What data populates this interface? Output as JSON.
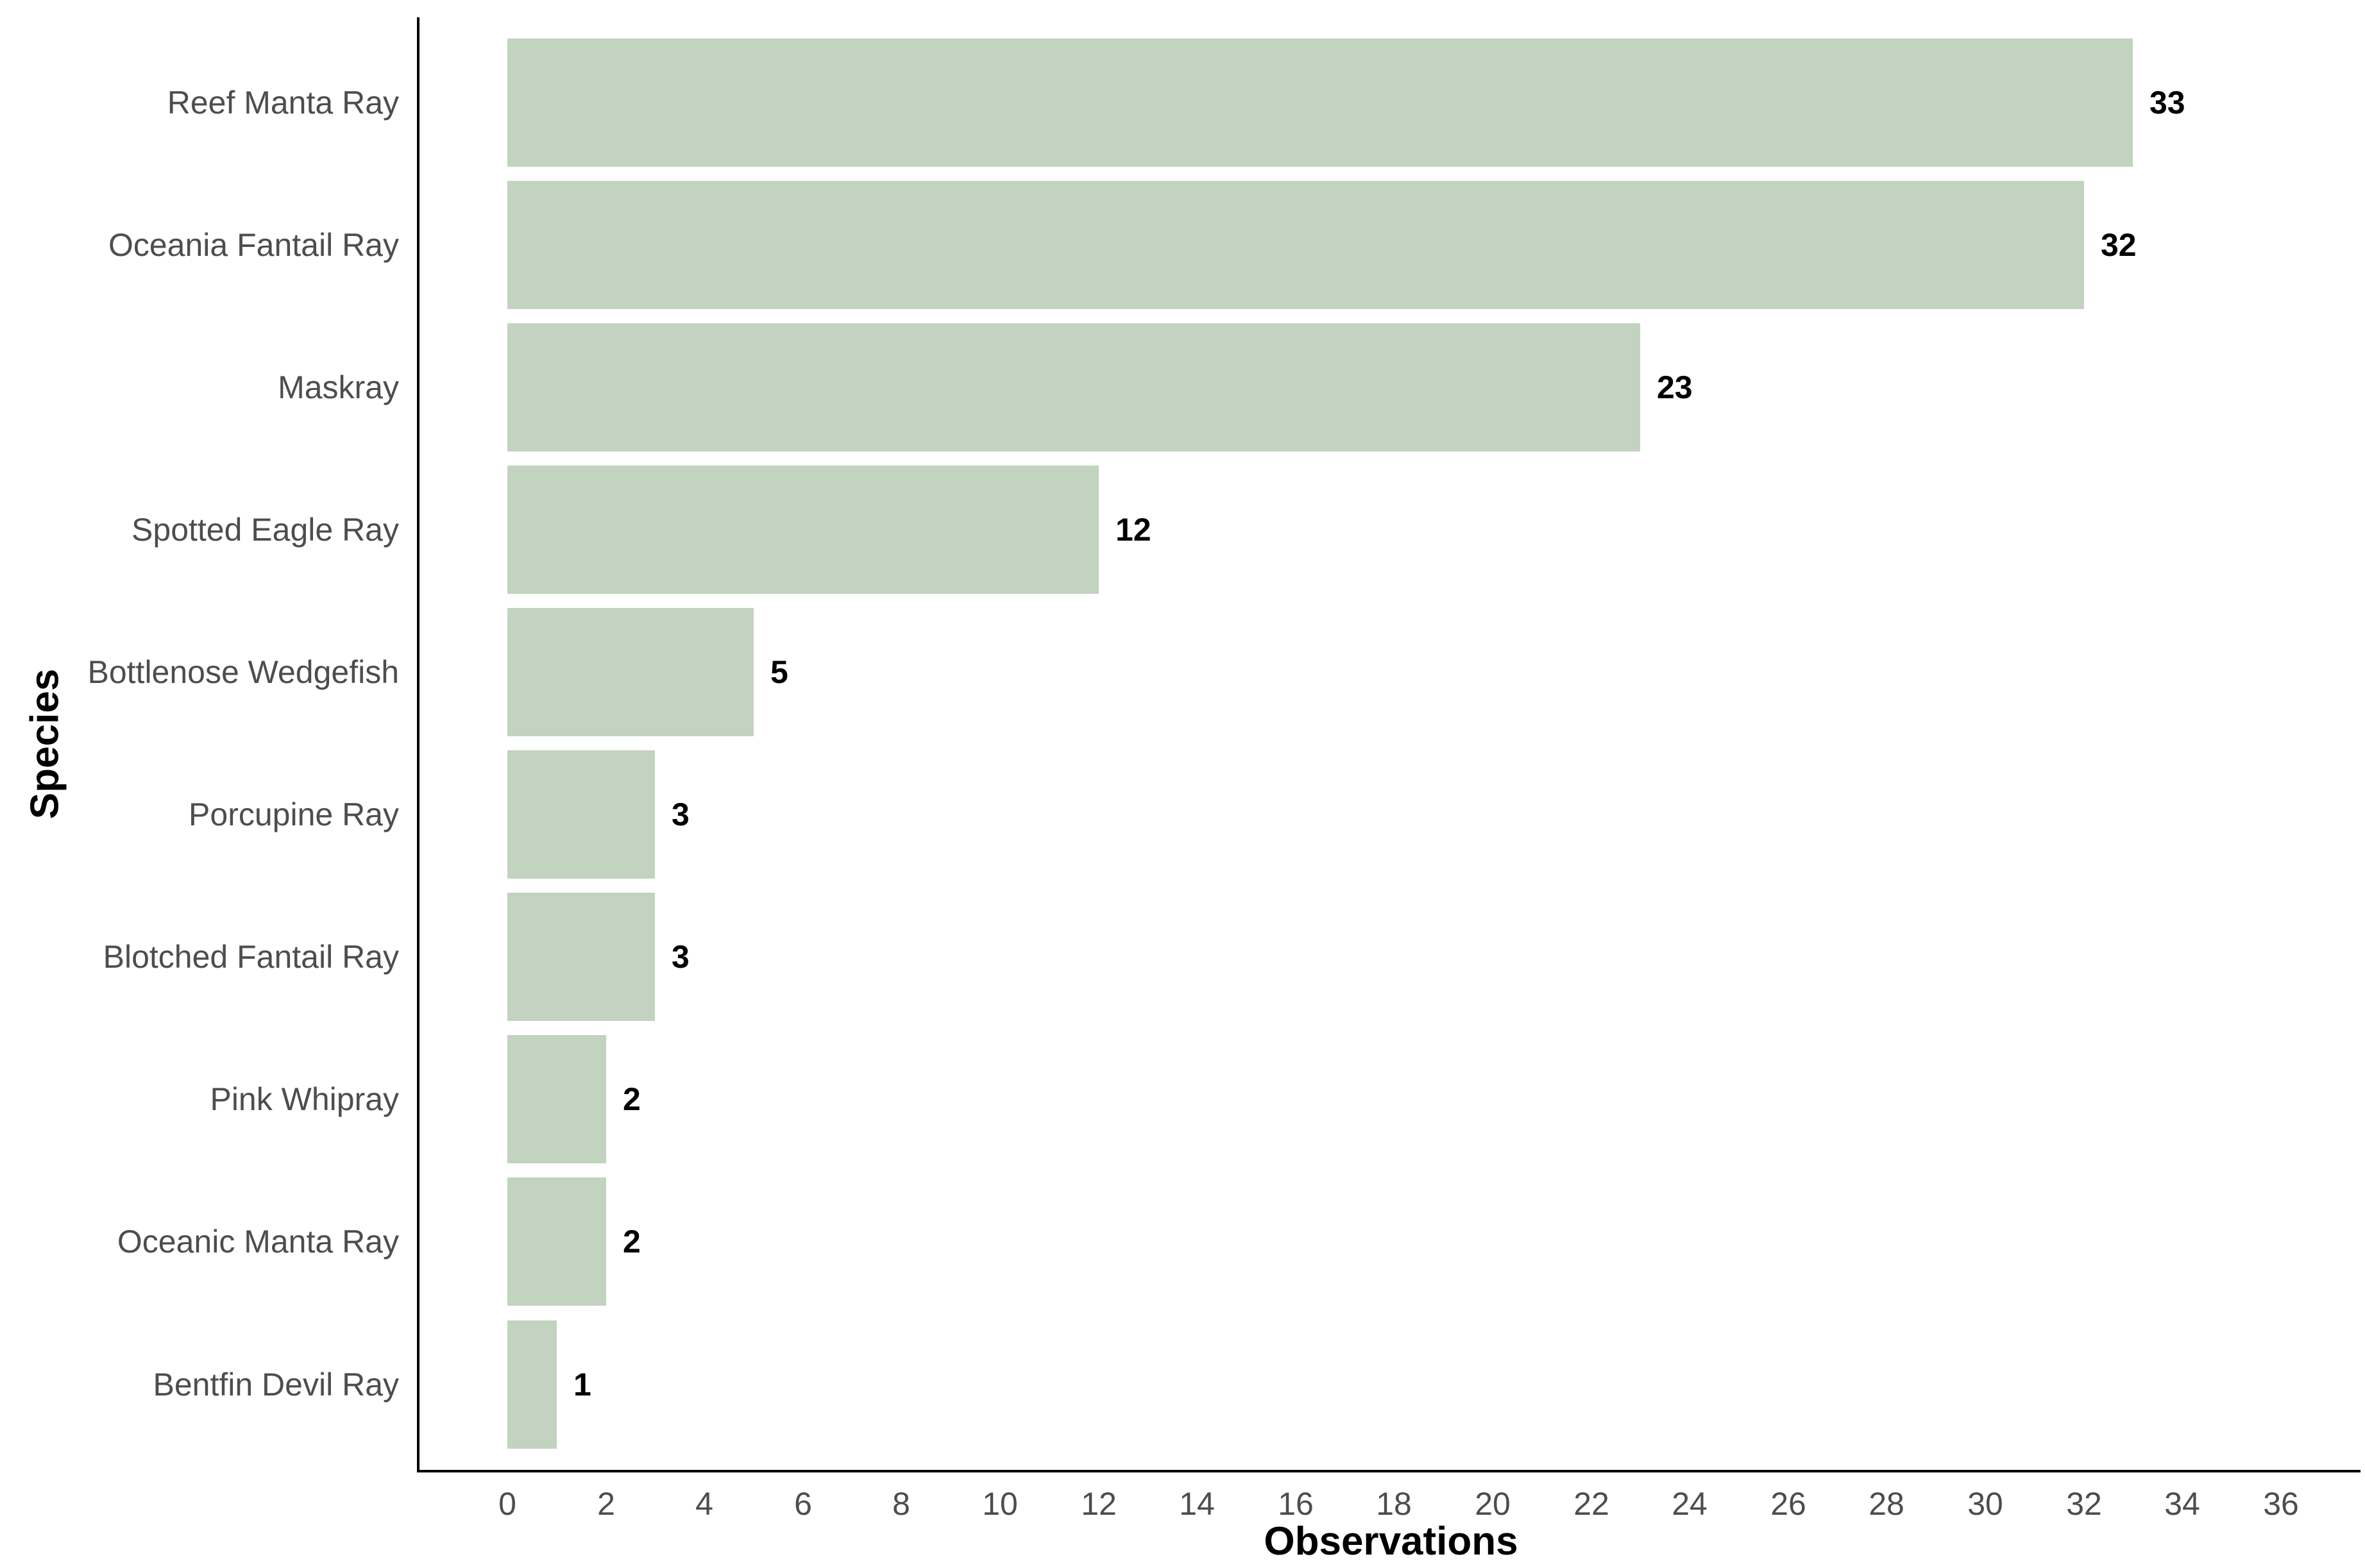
{
  "chart_data": {
    "type": "bar",
    "orientation": "horizontal",
    "title": "",
    "xlabel": "Observations",
    "ylabel": "Species",
    "categories": [
      "Reef Manta Ray",
      "Oceania Fantail Ray",
      "Maskray",
      "Spotted Eagle Ray",
      "Bottlenose Wedgefish",
      "Porcupine Ray",
      "Blotched Fantail Ray",
      "Pink Whipray",
      "Oceanic Manta Ray",
      "Bentfin Devil Ray"
    ],
    "values": [
      33,
      32,
      23,
      12,
      5,
      3,
      3,
      2,
      2,
      1
    ],
    "data_labels": [
      "33",
      "32",
      "23",
      "12",
      "5",
      "3",
      "3",
      "2",
      "2",
      "1"
    ],
    "x_ticks": [
      0,
      2,
      4,
      6,
      8,
      10,
      12,
      14,
      16,
      18,
      20,
      22,
      24,
      26,
      28,
      30,
      32,
      34,
      36
    ],
    "xlim": [
      0,
      36
    ],
    "grid": false,
    "legend": false,
    "bar_color": "#c2d3c0",
    "axis_text_color": "#4d4d4d",
    "axis_line_color": "#000000",
    "data_label_color": "#000000"
  }
}
